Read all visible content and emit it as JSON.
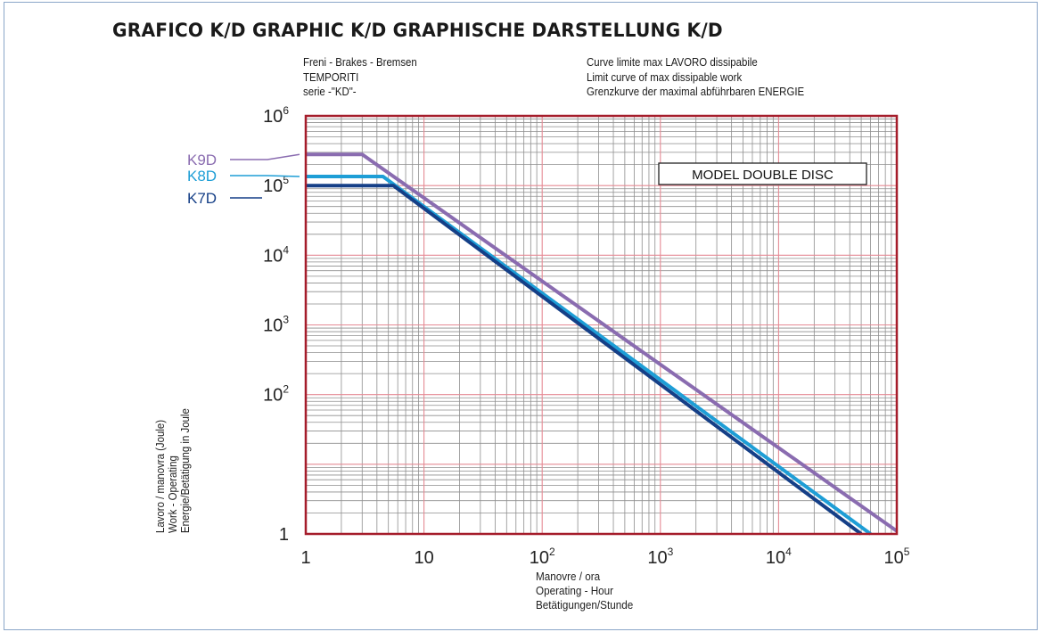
{
  "header": {
    "title": "GRAFICO K/D   GRAPHIC K/D   GRAPHISCHE DARSTELLUNG K/D",
    "left_note": [
      "Freni - Brakes - Bremsen",
      "TEMPORITI",
      "serie -\"KD\"-"
    ],
    "right_note": [
      "Curve limite max LAVORO dissipabile",
      "Limit curve of max dissipable work",
      "Grenzkurve der maximal abführbaren ENERGIE"
    ]
  },
  "chart_data": {
    "type": "line",
    "x_scale": "log",
    "y_scale": "log",
    "xlim": [
      1,
      100000
    ],
    "ylim": [
      1,
      1000000
    ],
    "grid": true,
    "x_ticks": [
      {
        "value": 1,
        "base": "1",
        "exp": ""
      },
      {
        "value": 10,
        "base": "10",
        "exp": ""
      },
      {
        "value": 100,
        "base": "10",
        "exp": "2"
      },
      {
        "value": 1000,
        "base": "10",
        "exp": "3"
      },
      {
        "value": 10000,
        "base": "10",
        "exp": "4"
      },
      {
        "value": 100000,
        "base": "10",
        "exp": "5"
      }
    ],
    "y_ticks": [
      {
        "value": 1,
        "base": "1",
        "exp": ""
      },
      {
        "value": 100,
        "base": "10",
        "exp": "2"
      },
      {
        "value": 1000,
        "base": "10",
        "exp": "3"
      },
      {
        "value": 10000,
        "base": "10",
        "exp": "4"
      },
      {
        "value": 100000,
        "base": "10",
        "exp": "5"
      },
      {
        "value": 1000000,
        "base": "10",
        "exp": "6"
      }
    ],
    "xlabel": [
      "Manovre / ora",
      "Operating - Hour",
      "Betätigungen/Stunde"
    ],
    "ylabel": [
      "Lavoro / manovra (Joule)",
      "Work - Operating",
      "Energie/Betätigung in Joule"
    ],
    "annotation": "MODEL DOUBLE DISC",
    "series": [
      {
        "name": "K9D",
        "color": "#8a6cb0",
        "x": [
          1,
          3,
          100000
        ],
        "y": [
          280000,
          280000,
          1.1
        ]
      },
      {
        "name": "K8D",
        "color": "#1e9ed6",
        "x": [
          1,
          4.5,
          60000
        ],
        "y": [
          135000,
          135000,
          1
        ]
      },
      {
        "name": "K7D",
        "color": "#153f87",
        "x": [
          1,
          5.5,
          50000
        ],
        "y": [
          100000,
          100000,
          1
        ]
      }
    ]
  }
}
